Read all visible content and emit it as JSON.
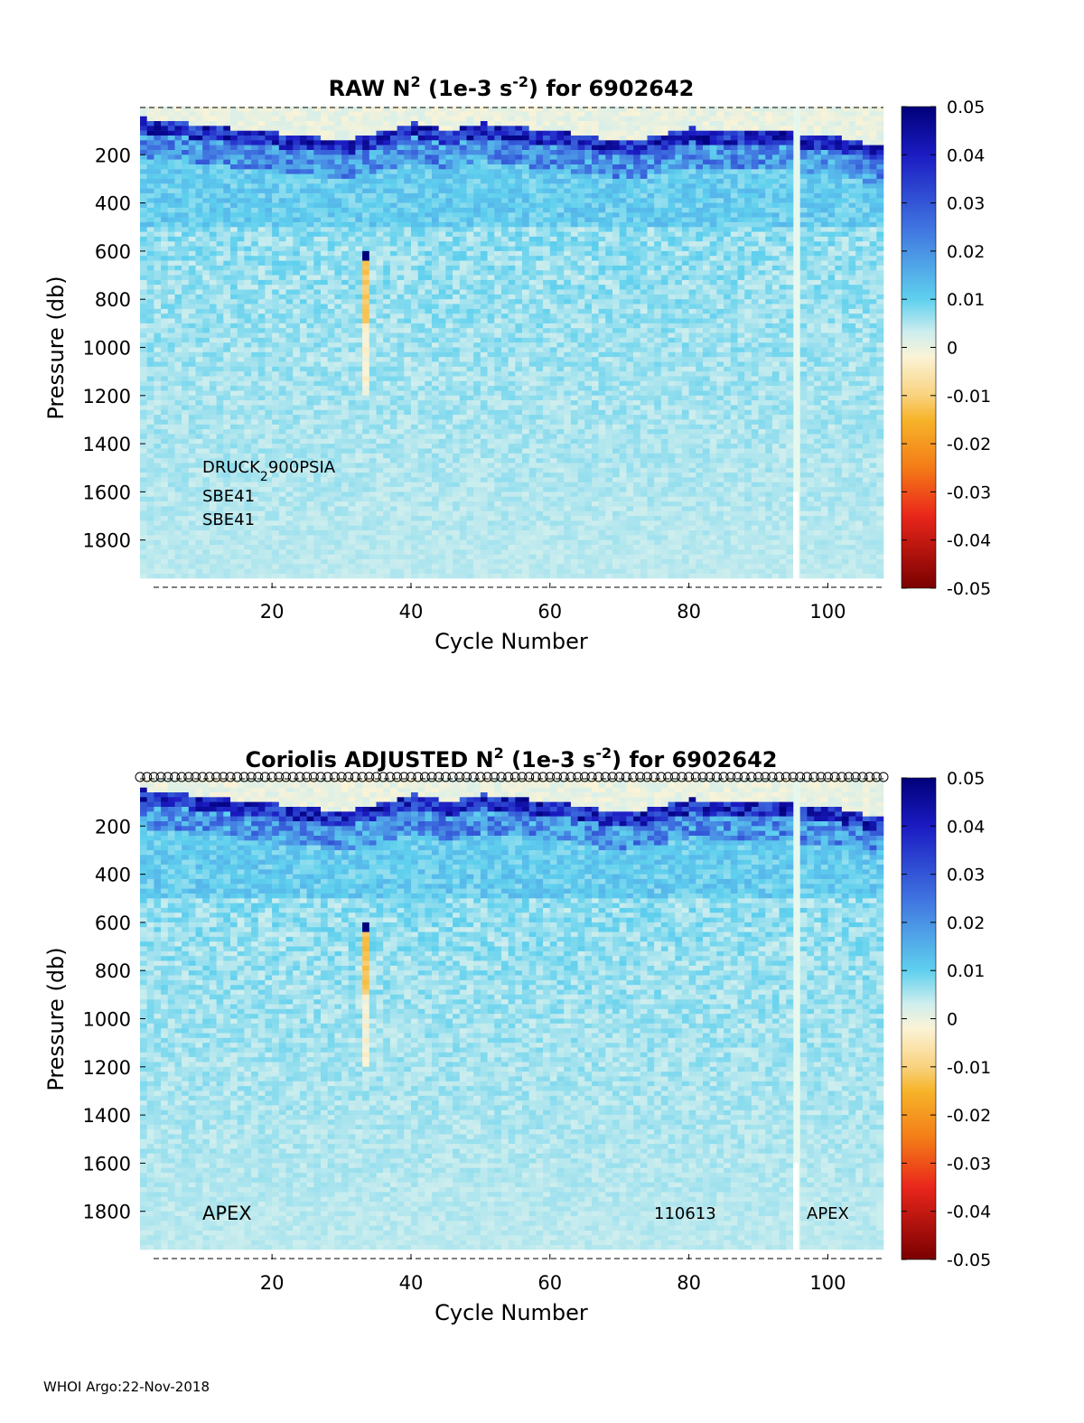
{
  "footer": "WHOI Argo:22-Nov-2018",
  "colorbar": {
    "ticks": [
      "0.05",
      "0.04",
      "0.03",
      "0.02",
      "0.01",
      "0",
      "-0.01",
      "-0.02",
      "-0.03",
      "-0.04",
      "-0.05"
    ],
    "min": -0.05,
    "max": 0.05
  },
  "chart_data": [
    {
      "type": "heatmap",
      "title_prefix": "RAW N",
      "title_sup1": "2",
      "title_mid": " (1e-3 s",
      "title_sup2": "-2",
      "title_suffix": ") for 6902642",
      "xlabel": "Cycle Number",
      "ylabel": "Pressure (db)",
      "xlim": [
        1,
        108
      ],
      "ylim": [
        2000,
        0
      ],
      "x_ticks": [
        20,
        40,
        60,
        80,
        100
      ],
      "y_ticks": [
        200,
        400,
        600,
        800,
        1000,
        1200,
        1400,
        1600,
        1800
      ],
      "colorbar_range": [
        -0.05,
        0.05
      ],
      "annotations": {
        "pressure_sensor_main": "DRUCK",
        "pressure_sensor_sub": "2",
        "pressure_sensor_tail": "900PSIA",
        "ctd_1": "SBE41",
        "ctd_2": "SBE41"
      },
      "features": {
        "thermocline_depth_db": [
          [
            1,
            80
          ],
          [
            10,
            110
          ],
          [
            20,
            140
          ],
          [
            30,
            170
          ],
          [
            40,
            100
          ],
          [
            45,
            130
          ],
          [
            50,
            100
          ],
          [
            60,
            130
          ],
          [
            70,
            180
          ],
          [
            80,
            120
          ],
          [
            90,
            130
          ],
          [
            100,
            150
          ],
          [
            108,
            200
          ]
        ],
        "thermocline_value": 0.045,
        "surface_value": 0.0,
        "deep_value": 0.004,
        "negative_anomaly_cycle": 33,
        "negative_anomaly_value": -0.012,
        "missing_profile_cycle": 95
      },
      "circle_markers": false
    },
    {
      "type": "heatmap",
      "title_prefix": "Coriolis  ADJUSTED N",
      "title_sup1": "2",
      "title_mid": " (1e-3 s",
      "title_sup2": "-2",
      "title_suffix": ") for 6902642",
      "xlabel": "Cycle Number",
      "ylabel": "Pressure (db)",
      "xlim": [
        1,
        108
      ],
      "ylim": [
        2000,
        0
      ],
      "x_ticks": [
        20,
        40,
        60,
        80,
        100
      ],
      "y_ticks": [
        200,
        400,
        600,
        800,
        1000,
        1200,
        1400,
        1600,
        1800
      ],
      "colorbar_range": [
        -0.05,
        0.05
      ],
      "annotations": {
        "platform_left": "APEX",
        "platform_serial": "110613",
        "platform_right": "APEX"
      },
      "features": {
        "thermocline_depth_db": [
          [
            1,
            80
          ],
          [
            10,
            110
          ],
          [
            20,
            140
          ],
          [
            30,
            170
          ],
          [
            40,
            100
          ],
          [
            45,
            130
          ],
          [
            50,
            100
          ],
          [
            60,
            130
          ],
          [
            70,
            180
          ],
          [
            80,
            120
          ],
          [
            90,
            130
          ],
          [
            100,
            150
          ],
          [
            108,
            200
          ]
        ],
        "thermocline_value": 0.045,
        "surface_value": 0.0,
        "deep_value": 0.004,
        "negative_anomaly_cycle": 33,
        "negative_anomaly_value": -0.012,
        "missing_profile_cycle": 95
      },
      "circle_markers": true
    }
  ]
}
